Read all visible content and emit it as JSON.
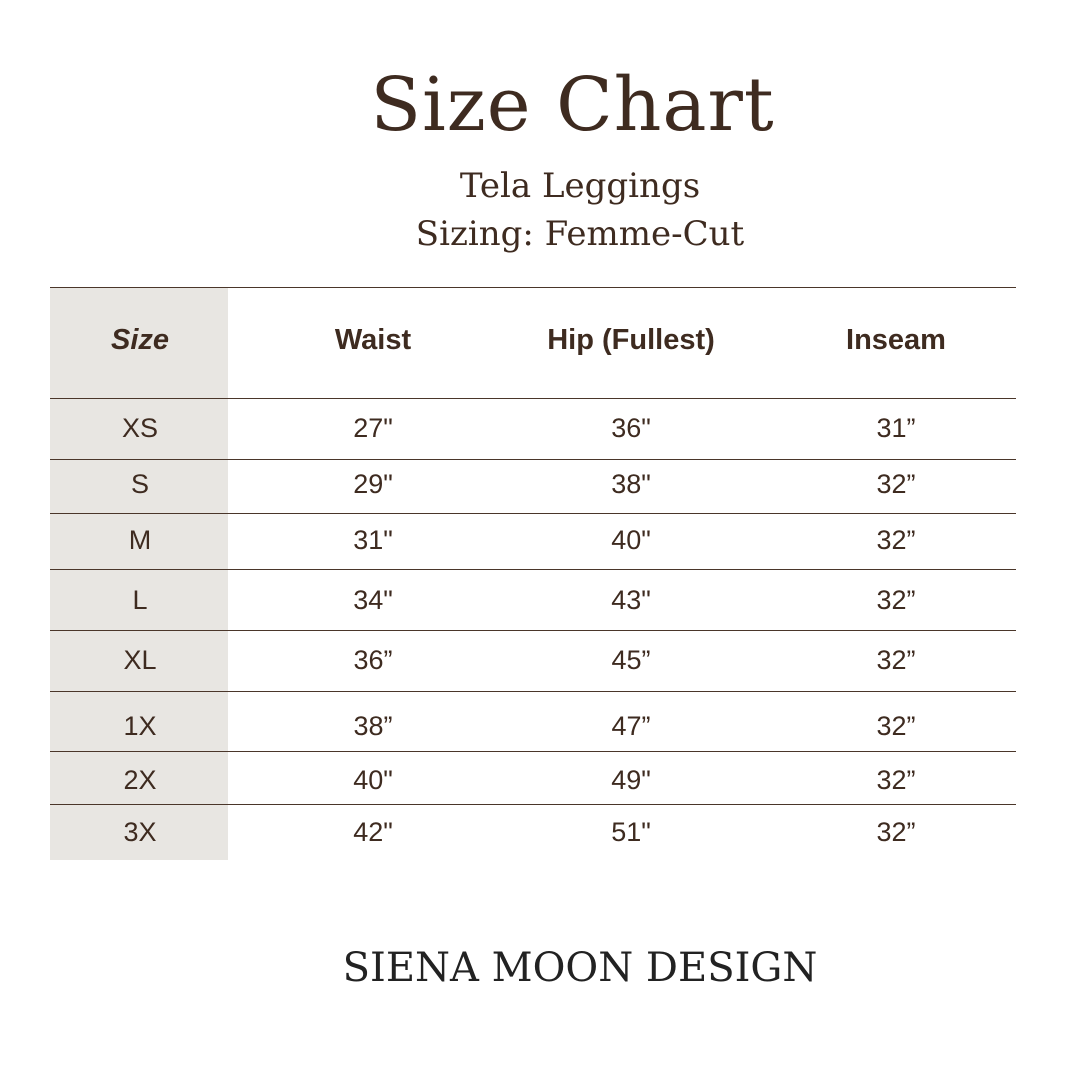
{
  "title": "Size Chart",
  "subtitle_lines": [
    "Tela Leggings",
    "Sizing: Femme-Cut"
  ],
  "table": {
    "headers": [
      "Size",
      "Waist",
      "Hip (Fullest)",
      "Inseam"
    ],
    "rows": [
      [
        "XS",
        "27\"",
        "36\"",
        "31”"
      ],
      [
        "S",
        "29\"",
        "38\"",
        "32”"
      ],
      [
        "M",
        "31\"",
        "40\"",
        "32”"
      ],
      [
        "L",
        "34\"",
        "43\"",
        "32”"
      ],
      [
        "XL",
        "36”",
        "45”",
        "32”"
      ],
      [
        "1X",
        "38”",
        "47”",
        "32”"
      ],
      [
        "2X",
        "40\"",
        "49\"",
        "32”"
      ],
      [
        "3X",
        "42\"",
        "51\"",
        "32”"
      ]
    ]
  },
  "brand": "SIENA MOON DESIGN",
  "colors": {
    "text": "#3e2b20",
    "size_column_bg": "#e8e6e2"
  }
}
